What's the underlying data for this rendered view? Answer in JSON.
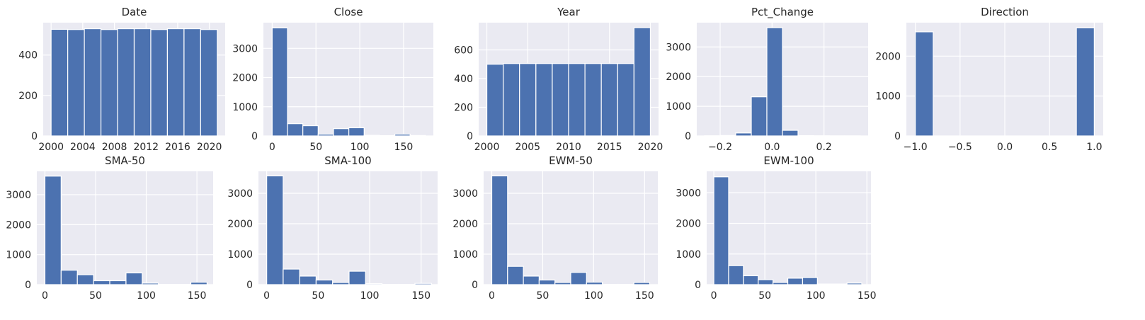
{
  "chart_data": [
    {
      "type": "bar",
      "title": "Date",
      "xlim": [
        1999.0,
        2022.0
      ],
      "ylim": [
        0,
        560
      ],
      "x_ticks": [
        2000,
        2004,
        2008,
        2012,
        2016,
        2020
      ],
      "x_tick_labels": [
        "2000",
        "2004",
        "2008",
        "2012",
        "2016",
        "2020"
      ],
      "y_ticks": [
        0,
        200,
        400
      ],
      "y_tick_labels": [
        "0",
        "200",
        "400"
      ],
      "bin_edges": [
        2000.0,
        2002.1,
        2004.2,
        2006.3,
        2008.4,
        2010.5,
        2012.6,
        2014.7,
        2016.8,
        2018.9,
        2021.0
      ],
      "values": [
        527,
        526,
        530,
        526,
        530,
        530,
        526,
        530,
        530,
        526
      ],
      "grid": true
    },
    {
      "type": "bar",
      "title": "Close",
      "xlim": [
        -10,
        184
      ],
      "ylim": [
        0,
        3880
      ],
      "x_ticks": [
        0,
        50,
        100,
        150
      ],
      "x_tick_labels": [
        "0",
        "50",
        "100",
        "150"
      ],
      "y_ticks": [
        0,
        1000,
        2000,
        3000
      ],
      "y_tick_labels": [
        "0",
        "1000",
        "2000",
        "3000"
      ],
      "bin_edges": [
        0,
        17.5,
        35,
        52.5,
        70,
        87.5,
        105,
        122.5,
        140,
        157.5,
        175
      ],
      "values": [
        3700,
        420,
        350,
        60,
        250,
        280,
        20,
        10,
        60,
        15
      ],
      "grid": true
    },
    {
      "type": "bar",
      "title": "Year",
      "xlim": [
        1999.0,
        2021.0
      ],
      "ylim": [
        0,
        790
      ],
      "x_ticks": [
        2000,
        2005,
        2010,
        2015,
        2020
      ],
      "x_tick_labels": [
        "2000",
        "2005",
        "2010",
        "2015",
        "2020"
      ],
      "y_ticks": [
        0,
        200,
        400,
        600
      ],
      "y_tick_labels": [
        "0",
        "200",
        "400",
        "600"
      ],
      "bin_edges": [
        2000,
        2002,
        2004,
        2006,
        2008,
        2010,
        2012,
        2014,
        2016,
        2018,
        2020
      ],
      "values": [
        500,
        505,
        505,
        505,
        505,
        505,
        505,
        505,
        505,
        755
      ],
      "grid": true
    },
    {
      "type": "bar",
      "title": "Pct_Change",
      "xlim": [
        -0.29,
        0.37
      ],
      "ylim": [
        0,
        3820
      ],
      "x_ticks": [
        -0.2,
        0.0,
        0.2
      ],
      "x_tick_labels": [
        "−0.2",
        "0.0",
        "0.2"
      ],
      "y_ticks": [
        0,
        1000,
        2000,
        3000
      ],
      "y_tick_labels": [
        "0",
        "1000",
        "2000",
        "3000"
      ],
      "bin_edges": [
        -0.26,
        -0.2,
        -0.14,
        -0.08,
        -0.02,
        0.04,
        0.1,
        0.16,
        0.22,
        0.28,
        0.34
      ],
      "values": [
        5,
        15,
        100,
        1320,
        3650,
        190,
        10,
        5,
        2,
        2
      ],
      "grid": true
    },
    {
      "type": "bar",
      "title": "Direction",
      "xlim": [
        -1.1,
        1.1
      ],
      "ylim": [
        0,
        2840
      ],
      "x_ticks": [
        -1.0,
        -0.5,
        0.0,
        0.5,
        1.0
      ],
      "x_tick_labels": [
        "−1.0",
        "−0.5",
        "0.0",
        "0.5",
        "1.0"
      ],
      "y_ticks": [
        0,
        1000,
        2000
      ],
      "y_tick_labels": [
        "0",
        "1000",
        "2000"
      ],
      "bin_edges": [
        -1.0,
        -0.8,
        -0.6,
        -0.4,
        -0.2,
        0.0,
        0.2,
        0.4,
        0.6,
        0.8,
        1.0
      ],
      "values": [
        2610,
        0,
        0,
        0,
        0,
        0,
        0,
        0,
        0,
        2710
      ],
      "grid": true
    },
    {
      "type": "bar",
      "title": "SMA-50",
      "xlim": [
        -8,
        166
      ],
      "ylim": [
        0,
        3780
      ],
      "x_ticks": [
        0,
        50,
        100,
        150
      ],
      "x_tick_labels": [
        "0",
        "50",
        "100",
        "150"
      ],
      "y_ticks": [
        0,
        1000,
        2000,
        3000
      ],
      "y_tick_labels": [
        "0",
        "1000",
        "2000",
        "3000"
      ],
      "bin_edges": [
        0,
        16,
        32,
        48,
        64,
        80,
        96,
        112,
        128,
        144,
        160
      ],
      "values": [
        3620,
        480,
        330,
        130,
        130,
        390,
        50,
        10,
        10,
        80
      ],
      "grid": true
    },
    {
      "type": "bar",
      "title": "SMA-100",
      "xlim": [
        -8,
        166
      ],
      "ylim": [
        0,
        3720
      ],
      "x_ticks": [
        0,
        50,
        100,
        150
      ],
      "x_tick_labels": [
        "0",
        "50",
        "100",
        "150"
      ],
      "y_ticks": [
        0,
        1000,
        2000,
        3000
      ],
      "y_tick_labels": [
        "0",
        "1000",
        "2000",
        "3000"
      ],
      "bin_edges": [
        0,
        16,
        32,
        48,
        64,
        80,
        96,
        112,
        128,
        144,
        160
      ],
      "values": [
        3570,
        510,
        280,
        150,
        70,
        440,
        30,
        10,
        10,
        40
      ],
      "grid": true
    },
    {
      "type": "bar",
      "title": "EWM-50",
      "xlim": [
        -8,
        163
      ],
      "ylim": [
        0,
        3720
      ],
      "x_ticks": [
        0,
        50,
        100,
        150
      ],
      "x_tick_labels": [
        "0",
        "50",
        "100",
        "150"
      ],
      "y_ticks": [
        0,
        1000,
        2000,
        3000
      ],
      "y_tick_labels": [
        "0",
        "1000",
        "2000",
        "3000"
      ],
      "bin_edges": [
        0,
        15.5,
        31,
        46.5,
        62,
        77.5,
        93,
        108.5,
        124,
        139.5,
        155
      ],
      "values": [
        3570,
        600,
        280,
        150,
        70,
        400,
        80,
        10,
        10,
        70
      ],
      "grid": true
    },
    {
      "type": "bar",
      "title": "EWM-100",
      "xlim": [
        -7,
        154
      ],
      "ylim": [
        0,
        3700
      ],
      "x_ticks": [
        0,
        50,
        100,
        150
      ],
      "x_tick_labels": [
        "0",
        "50",
        "100",
        "150"
      ],
      "y_ticks": [
        0,
        1000,
        2000,
        3000
      ],
      "y_tick_labels": [
        "0",
        "1000",
        "2000",
        "3000"
      ],
      "bin_edges": [
        0,
        14.5,
        29,
        43.5,
        58,
        72.5,
        87,
        101.5,
        116,
        130.5,
        145
      ],
      "values": [
        3520,
        620,
        290,
        160,
        70,
        210,
        230,
        20,
        20,
        50
      ],
      "grid": true
    }
  ]
}
